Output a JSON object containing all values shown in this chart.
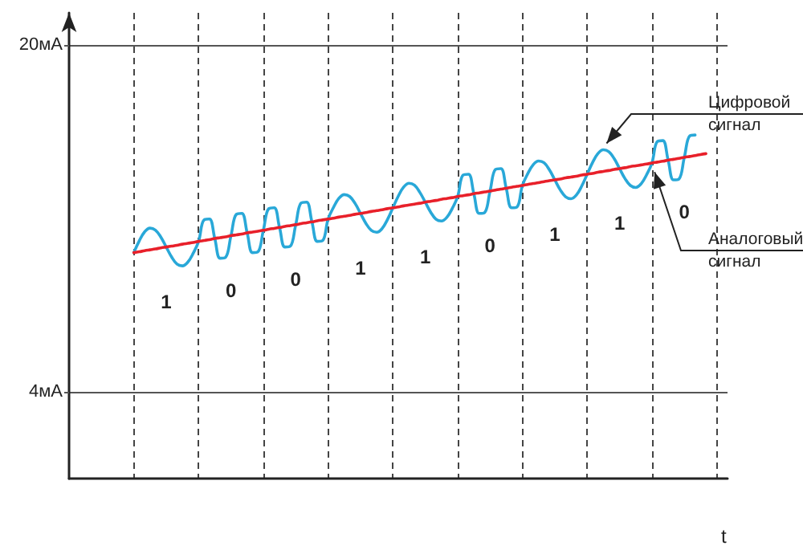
{
  "chart_data": {
    "type": "line",
    "xlabel": "t",
    "categories": [
      null,
      null,
      null,
      null,
      null,
      null,
      null,
      null,
      null,
      null,
      null,
      null,
      null,
      null,
      null,
      null,
      null,
      null,
      null,
      null,
      null,
      null,
      null,
      null,
      null,
      null,
      null,
      null,
      null,
      null,
      null,
      null,
      null,
      null,
      null,
      null,
      null,
      null,
      null,
      null,
      null,
      null,
      null,
      null,
      null,
      null,
      null,
      null,
      null,
      null,
      null,
      null,
      null,
      null,
      null,
      null,
      null,
      null,
      null,
      null,
      null,
      null,
      null,
      null,
      null,
      null,
      null,
      null,
      null,
      null,
      null,
      null,
      null,
      null,
      null,
      null,
      null,
      null,
      null,
      null,
      null,
      null,
      null,
      null,
      null,
      null,
      null,
      null,
      null,
      null,
      null,
      null,
      null,
      null,
      null,
      null,
      null,
      null,
      null,
      null,
      null,
      null,
      null,
      null,
      null,
      null,
      null,
      null,
      null,
      null,
      null,
      null,
      null,
      null,
      null,
      null,
      null,
      null,
      null,
      null,
      null,
      null,
      null
    ],
    "series": [
      {
        "name": "Цифровой сигнал",
        "color": "#29a8d8",
        "values": [
          null,
          null,
          null,
          null,
          null,
          null,
          null,
          null,
          null,
          null,
          null,
          null,
          10.43,
          10.97,
          11.39,
          11.56,
          11.47,
          11.15,
          10.69,
          10.23,
          9.9,
          9.82,
          9.99,
          10.4,
          10.95,
          11.94,
          11.98,
          11.08,
          10.17,
          10.21,
          11.21,
          12.2,
          12.24,
          11.34,
          10.43,
          10.47,
          11.46,
          12.46,
          12.5,
          11.59,
          10.69,
          10.73,
          11.72,
          12.72,
          12.76,
          11.85,
          10.95,
          10.99,
          11.98,
          12.52,
          12.94,
          13.11,
          13.02,
          12.7,
          12.24,
          11.78,
          11.46,
          11.37,
          11.54,
          11.96,
          12.5,
          13.04,
          13.46,
          13.63,
          13.54,
          13.21,
          12.76,
          12.3,
          11.97,
          11.89,
          12.06,
          12.47,
          13.02,
          14.01,
          14.05,
          13.15,
          12.24,
          12.28,
          13.27,
          14.27,
          14.31,
          13.4,
          12.5,
          12.54,
          13.53,
          14.08,
          14.49,
          14.66,
          14.58,
          14.25,
          13.79,
          13.33,
          13.01,
          12.92,
          13.09,
          13.51,
          14.05,
          14.59,
          15.01,
          15.18,
          15.09,
          14.77,
          14.31,
          13.85,
          13.53,
          13.44,
          13.61,
          14.02,
          14.57,
          15.56,
          15.6,
          14.7,
          13.79,
          13.83,
          14.83,
          15.82,
          15.86,
          null,
          null,
          null,
          null,
          null,
          null
        ]
      },
      {
        "name": "Аналоговый сигнал",
        "color": "#e8202a",
        "values": [
          null,
          null,
          null,
          null,
          null,
          null,
          null,
          null,
          null,
          null,
          null,
          null,
          10.43,
          10.47,
          10.52,
          10.56,
          10.6,
          10.65,
          10.69,
          10.73,
          10.77,
          10.82,
          10.86,
          10.9,
          10.95,
          10.99,
          11.03,
          11.08,
          11.12,
          11.16,
          11.21,
          11.25,
          11.29,
          11.34,
          11.38,
          11.42,
          11.46,
          11.51,
          11.55,
          11.59,
          11.64,
          11.68,
          11.72,
          11.77,
          11.81,
          11.85,
          11.9,
          11.94,
          11.98,
          12.02,
          12.07,
          12.11,
          12.15,
          12.2,
          12.24,
          12.28,
          12.33,
          12.37,
          12.41,
          12.46,
          12.5,
          12.54,
          12.59,
          12.63,
          12.67,
          12.71,
          12.76,
          12.8,
          12.84,
          12.89,
          12.93,
          12.97,
          13.02,
          13.06,
          13.1,
          13.15,
          13.19,
          13.23,
          13.27,
          13.32,
          13.36,
          13.4,
          13.45,
          13.49,
          13.53,
          13.58,
          13.62,
          13.66,
          13.71,
          13.75,
          13.79,
          13.83,
          13.88,
          13.92,
          13.96,
          14.01,
          14.05,
          14.09,
          14.14,
          14.18,
          14.22,
          14.27,
          14.31,
          14.35,
          14.4,
          14.44,
          14.48,
          14.52,
          14.57,
          14.61,
          14.65,
          14.7,
          14.74,
          14.78,
          14.83,
          14.87,
          14.91,
          14.96,
          15.0,
          null,
          null,
          null,
          null
        ]
      }
    ],
    "ylim": [
      0,
      21.5
    ],
    "yticks": [
      {
        "value": 4,
        "label": "4мА"
      },
      {
        "value": 20,
        "label": "20мА"
      }
    ],
    "grid": true,
    "legend": false,
    "tick_labels": "y",
    "line_style": "solid",
    "annotations": [
      "1",
      "0",
      "0",
      "1",
      "1",
      "0",
      "1",
      "1",
      "0"
    ]
  }
}
